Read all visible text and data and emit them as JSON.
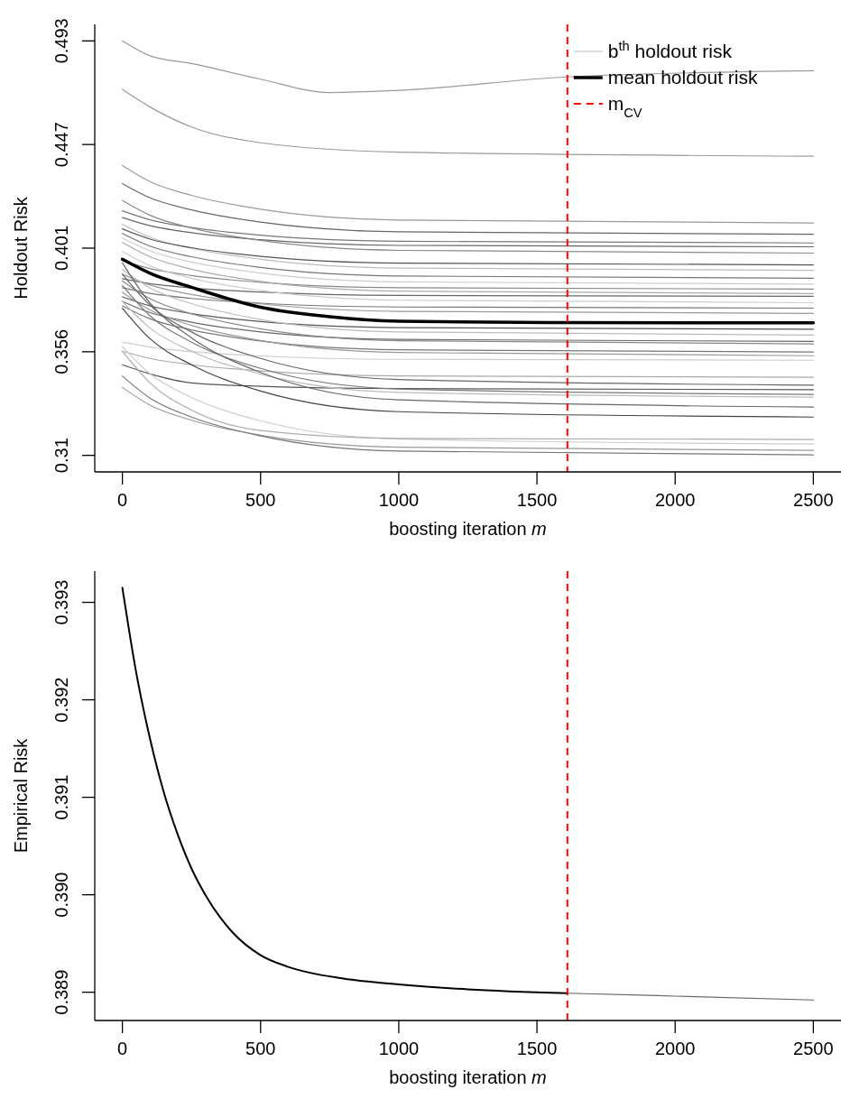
{
  "chart_data": [
    {
      "type": "line",
      "xlabel": "boosting iteration m",
      "ylabel": "Holdout Risk",
      "xlim": [
        -100,
        2600
      ],
      "ylim": [
        0.3027,
        0.5003
      ],
      "xticks": [
        0,
        500,
        1000,
        1500,
        2000,
        2500
      ],
      "yticks": [
        0.31,
        {
          "value": 0.35575,
          "label": "0.356"
        },
        {
          "value": 0.4015,
          "label": "0.401"
        },
        {
          "value": 0.44725,
          "label": "0.447"
        },
        0.493
      ],
      "legend": "top right",
      "grid": false,
      "x": [
        0,
        100,
        250,
        500,
        1000,
        2500
      ],
      "ref_lines": [
        {
          "axis": "x",
          "value": 1610,
          "label": "m$_{CV}$",
          "color": "#ff0000",
          "line_style": "dashed"
        }
      ],
      "series": [
        {
          "name": "b$^{th}$ holdout risk",
          "color": "#bbbbbb",
          "values": [
            0.412,
            0.4063,
            0.4014,
            0.3966,
            0.3927,
            0.3917
          ]
        },
        {
          "color": "#999999",
          "x": [
            0,
            100,
            250,
            500,
            750,
            1000,
            1610,
            2500
          ],
          "values": [
            0.493,
            0.4864,
            0.483,
            0.4761,
            0.4702,
            0.4712,
            0.4771,
            0.4798
          ]
        },
        {
          "color": "#999999",
          "values": [
            0.4716,
            0.4638,
            0.455,
            0.448,
            0.4439,
            0.4421
          ]
        },
        {
          "color": "#999999",
          "values": [
            0.438,
            0.4309,
            0.4248,
            0.4187,
            0.4139,
            0.4126
          ]
        },
        {
          "color": "#666666",
          "values": [
            0.43,
            0.4237,
            0.4184,
            0.413,
            0.4087,
            0.4076
          ]
        },
        {
          "color": "#777777",
          "values": [
            0.418,
            0.414,
            0.4106,
            0.4072,
            0.4045,
            0.4038
          ]
        },
        {
          "color": "#666666",
          "values": [
            0.415,
            0.4114,
            0.4083,
            0.4052,
            0.4027,
            0.4021
          ]
        },
        {
          "color": "#888888",
          "values": [
            0.4225,
            0.416,
            0.4104,
            0.4049,
            0.4005,
            0.3993
          ]
        },
        {
          "color": "#555555",
          "values": [
            0.41,
            0.4055,
            0.4017,
            0.3979,
            0.3949,
            0.3941
          ]
        },
        {
          "color": "#777777",
          "values": [
            0.408,
            0.4024,
            0.3977,
            0.393,
            0.3892,
            0.3882
          ]
        },
        {
          "color": "#cccccc",
          "values": [
            0.406,
            0.4003,
            0.3954,
            0.3905,
            0.3866,
            0.3856
          ]
        },
        {
          "color": "#888888",
          "values": [
            0.396,
            0.3925,
            0.3894,
            0.3864,
            0.384,
            0.3834
          ]
        },
        {
          "color": "#aaaaaa",
          "values": [
            0.404,
            0.3977,
            0.3922,
            0.3868,
            0.3825,
            0.3814
          ]
        },
        {
          "color": "#666666",
          "values": [
            0.388,
            0.3858,
            0.3839,
            0.3821,
            0.3806,
            0.3802
          ]
        },
        {
          "color": "#cccccc",
          "values": [
            0.4,
            0.3937,
            0.3882,
            0.3828,
            0.3785,
            0.3774
          ]
        },
        {
          "color": "#777777",
          "values": [
            0.384,
            0.3815,
            0.3793,
            0.3772,
            0.3755,
            0.375
          ]
        },
        {
          "color": "#999999",
          "values": [
            0.39,
            0.3852,
            0.381,
            0.3769,
            0.3736,
            0.3727
          ]
        },
        {
          "color": "#555555",
          "values": [
            0.38,
            0.376,
            0.3726,
            0.3691,
            0.3664,
            0.3657
          ]
        },
        {
          "color": "#bbbbbb",
          "values": [
            0.392,
            0.3839,
            0.377,
            0.37,
            0.3645,
            0.3631
          ]
        },
        {
          "color": "#666666",
          "values": [
            0.378,
            0.373,
            0.3688,
            0.3645,
            0.3612,
            0.3603
          ]
        },
        {
          "color": "#888888",
          "values": [
            0.387,
            0.3792,
            0.3725,
            0.3659,
            0.3606,
            0.3592
          ]
        },
        {
          "color": "#777777",
          "values": [
            0.376,
            0.3703,
            0.3654,
            0.3605,
            0.3566,
            0.3556
          ]
        },
        {
          "color": "#999999",
          "values": [
            0.382,
            0.3742,
            0.3674,
            0.3607,
            0.3554,
            0.354
          ]
        },
        {
          "color": "#cccccc",
          "values": [
            0.36,
            0.3578,
            0.3558,
            0.3539,
            0.3524,
            0.352
          ]
        },
        {
          "color": "#aaaaaa",
          "values": [
            0.356,
            0.3528,
            0.35,
            0.3473,
            0.3451,
            0.3445
          ]
        },
        {
          "color": "#666666",
          "values": [
            0.39,
            0.3763,
            0.3645,
            0.3528,
            0.3435,
            0.341
          ]
        },
        {
          "color": "#555555",
          "values": [
            0.35,
            0.346,
            0.342,
            0.3405,
            0.3395,
            0.339
          ]
        },
        {
          "color": "#777777",
          "values": [
            0.385,
            0.3716,
            0.36,
            0.3484,
            0.3393,
            0.3369
          ]
        },
        {
          "color": "#bbbbbb",
          "values": [
            0.378,
            0.3662,
            0.356,
            0.3459,
            0.3378,
            0.3357
          ]
        },
        {
          "color": "#666666",
          "values": [
            0.395,
            0.3772,
            0.3619,
            0.3466,
            0.3345,
            0.3313
          ]
        },
        {
          "color": "#444444",
          "values": [
            0.375,
            0.3615,
            0.35,
            0.3384,
            0.3293,
            0.3269
          ]
        },
        {
          "color": "#cccccc",
          "values": [
            0.358,
            0.346,
            0.3356,
            0.3253,
            0.3172,
            0.315
          ]
        },
        {
          "color": "#999999",
          "values": [
            0.34,
            0.3322,
            0.3255,
            0.3189,
            0.3136,
            0.3122
          ]
        },
        {
          "color": "#777777",
          "values": [
            0.345,
            0.3353,
            0.3269,
            0.3186,
            0.3119,
            0.3102
          ]
        },
        {
          "color": "#aaaaaa",
          "values": [
            0.356,
            0.342,
            0.33,
            0.321,
            0.3175,
            0.317
          ]
        },
        {
          "name": "mean holdout risk",
          "color": "#000000",
          "x": [
            0,
            100,
            250,
            500,
            750,
            1000,
            1610,
            2500
          ],
          "values": [
            0.3966,
            0.3904,
            0.3842,
            0.3754,
            0.3712,
            0.3692,
            0.3686,
            0.3685
          ]
        }
      ]
    },
    {
      "type": "line",
      "xlabel": "boosting iteration m",
      "ylabel": "Empirical Risk",
      "xlim": [
        -100,
        2600
      ],
      "ylim": [
        0.38871,
        0.39332
      ],
      "xticks": [
        0,
        500,
        1000,
        1500,
        2000,
        2500
      ],
      "yticks": [
        0.393,
        0.392,
        0.391,
        {
          "value": 0.39,
          "label": "0.390"
        },
        0.389
      ],
      "grid": false,
      "ref_lines": [
        {
          "axis": "x",
          "value": 1610,
          "color": "#ff0000",
          "line_style": "dashed"
        }
      ],
      "series": [
        {
          "color": "#000000",
          "x": [
            0,
            50,
            100,
            150,
            200,
            250,
            300,
            400,
            500,
            600,
            800,
            1000,
            1250,
            1610
          ],
          "values": [
            0.39315,
            0.39228,
            0.3916,
            0.39105,
            0.39062,
            0.39027,
            0.39,
            0.38961,
            0.38938,
            0.38926,
            0.38914,
            0.38908,
            0.38903,
            0.38899
          ]
        },
        {
          "color": "#666666",
          "x": [
            1610,
            2000,
            2500
          ],
          "values": [
            0.38899,
            0.38896,
            0.38892
          ]
        }
      ]
    }
  ]
}
